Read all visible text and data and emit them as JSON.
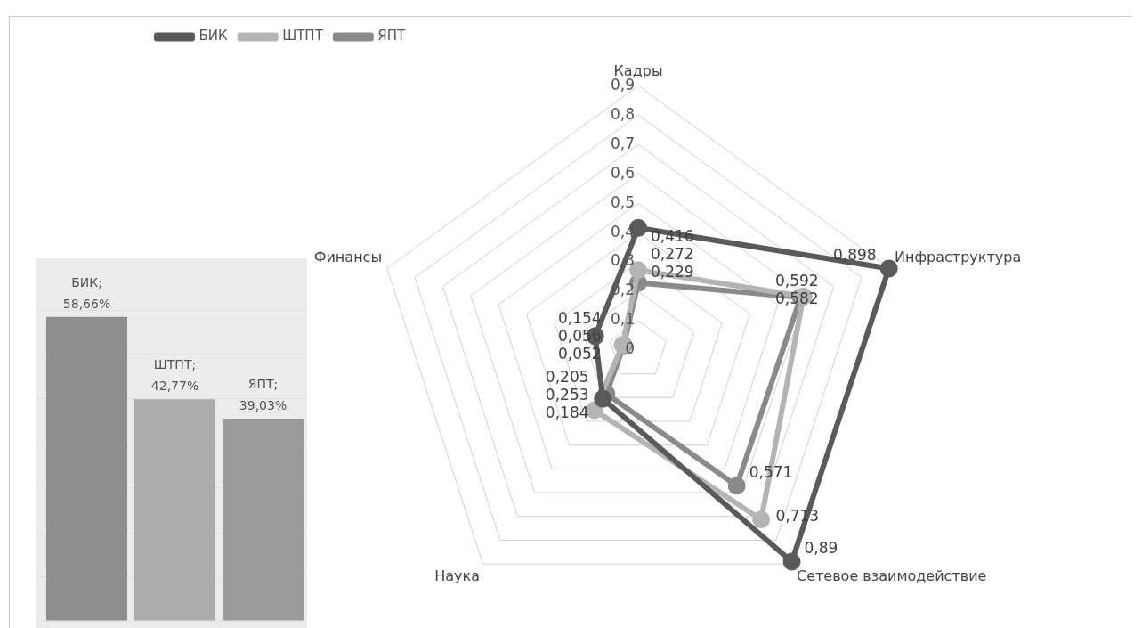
{
  "chart_data": [
    {
      "type": "radar",
      "categories": [
        "Кадры",
        "Инфраструктура",
        "Сетевое взаимодействие",
        "Наука",
        "Финансы"
      ],
      "series": [
        {
          "name": "БИК",
          "color": "#5a5a5a",
          "values": [
            0.416,
            0.898,
            0.89,
            0.205,
            0.154
          ],
          "value_labels": [
            "0,416",
            "0,898",
            "0,89",
            "0,205",
            "0,154"
          ]
        },
        {
          "name": "ШТПТ",
          "color": "#b4b4b4",
          "values": [
            0.272,
            0.592,
            0.713,
            0.253,
            0.056
          ],
          "value_labels": [
            "0,272",
            "0,592",
            "0,713",
            "0,253",
            "0,056"
          ]
        },
        {
          "name": "ЯПТ",
          "color": "#8a8a8a",
          "values": [
            0.229,
            0.582,
            0.571,
            0.184,
            0.052
          ],
          "value_labels": [
            "0,229",
            "0,582",
            "0,571",
            "0,184",
            "0,052"
          ]
        }
      ],
      "ylim": [
        0,
        0.9
      ],
      "yticks": [
        {
          "value": 0,
          "label": "0"
        },
        {
          "value": 0.1,
          "label": "0,1"
        },
        {
          "value": 0.2,
          "label": "0,2"
        },
        {
          "value": 0.3,
          "label": "0,3"
        },
        {
          "value": 0.4,
          "label": "0,4"
        },
        {
          "value": 0.5,
          "label": "0,5"
        },
        {
          "value": 0.6,
          "label": "0,6"
        },
        {
          "value": 0.7,
          "label": "0,7"
        },
        {
          "value": 0.8,
          "label": "0,8"
        },
        {
          "value": 0.9,
          "label": "0,9"
        }
      ],
      "grid": true,
      "legend": "top left",
      "marker": "circle",
      "line_style": "solid"
    },
    {
      "type": "bar",
      "categories": [
        null,
        null,
        null
      ],
      "values": [
        58.66,
        42.77,
        39.03
      ],
      "colors": [
        "#8e8e8e",
        "#ababab",
        "#9b9b9b"
      ],
      "value_labels": [
        "БИК; 58,66%",
        "ШТПТ; 42,77%",
        "ЯПТ; 39,03%"
      ],
      "grid": "y"
    }
  ]
}
